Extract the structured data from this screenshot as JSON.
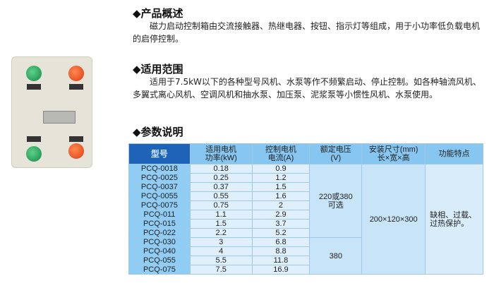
{
  "overview": {
    "title": "◆产品概述",
    "text": "磁力启动控制箱由交流接触器、热继电器、按钮、指示灯等组成，用于小功率低负载电机的启停控制。"
  },
  "scope": {
    "title": "◆适用范围",
    "text": "适用于7.5kW以下的各种型号风机、水泵等作不频繁启动、停止控制。如各种轴流风机、多翼式离心风机、空调风机和抽水泵、加压泵、泥浆泵等小惯性风机、水泵使用。"
  },
  "params": {
    "title": "◆参数说明",
    "headers": [
      "型号",
      "适用电机\n功率(kW)",
      "控制电机\n电流(A)",
      "额定电压\n(V)",
      "安装尺寸(mm)\n长×宽×高",
      "功能特点"
    ],
    "rows": [
      [
        "PCQ-0018",
        "0.18",
        "0.9"
      ],
      [
        "PCQ-0025",
        "0.25",
        "1.2"
      ],
      [
        "PCQ-0037",
        "0.37",
        "1.5"
      ],
      [
        "PCQ-0055",
        "0.55",
        "1.6"
      ],
      [
        "PCQ-0075",
        "0.75",
        "2"
      ],
      [
        "PCQ-011",
        "1.1",
        "2.9"
      ],
      [
        "PCQ-015",
        "1.5",
        "3.7"
      ],
      [
        "PCQ-022",
        "2.2",
        "5.2"
      ],
      [
        "PCQ-030",
        "3",
        "6.8"
      ],
      [
        "PCQ-040",
        "4",
        "8.8"
      ],
      [
        "PCQ-055",
        "5.5",
        "11.8"
      ],
      [
        "PCQ-075",
        "7.5",
        "16.9"
      ]
    ],
    "voltage_a": "220或380\n可选",
    "voltage_b": "380",
    "size": "200×120×300",
    "feature": "缺相、过载、\n过热保护。"
  },
  "colors": {
    "header_dark": "#1e63b8",
    "header": "#86c6f0",
    "model_col": "#8fcdf5",
    "cell": "#dff0fc"
  }
}
